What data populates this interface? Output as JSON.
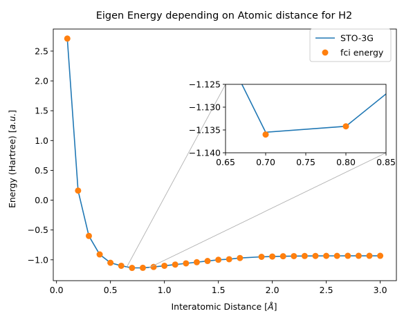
{
  "chart_data": {
    "type": "line",
    "title": "Eigen Energy depending on Atomic distance for H2",
    "xlabel_parts": [
      "Interatomic Distance [",
      "Å",
      "]"
    ],
    "ylabel_parts": [
      "Energy (Hartree) [",
      "a.u.",
      "]"
    ],
    "xlim": [
      -0.03,
      3.15
    ],
    "ylim": [
      -1.35,
      2.87
    ],
    "x_ticks": [
      0.0,
      0.5,
      1.0,
      1.5,
      2.0,
      2.5,
      3.0
    ],
    "x_tick_labels": [
      "0.0",
      "0.5",
      "1.0",
      "1.5",
      "2.0",
      "2.5",
      "3.0"
    ],
    "y_ticks": [
      -1.0,
      -0.5,
      0.0,
      0.5,
      1.0,
      1.5,
      2.0,
      2.5
    ],
    "y_tick_labels": [
      "−1.0",
      "−0.5",
      "0.0",
      "0.5",
      "1.0",
      "1.5",
      "2.0",
      "2.5"
    ],
    "legend_position": "top-right",
    "series": [
      {
        "name": "STO-3G",
        "kind": "line",
        "color": "#1f77b4",
        "x": [
          0.1,
          0.2,
          0.3,
          0.4,
          0.5,
          0.6,
          0.7,
          0.8,
          0.9,
          1.0,
          1.1,
          1.2,
          1.3,
          1.4,
          1.5,
          1.6,
          1.7,
          1.9,
          2.0,
          2.1,
          2.2,
          2.3,
          2.4,
          2.5,
          2.6,
          2.7,
          2.8,
          2.9,
          3.0
        ],
        "y": [
          2.71,
          0.16,
          -0.6,
          -0.91,
          -1.05,
          -1.1,
          -1.1355,
          -1.1342,
          -1.12,
          -1.1,
          -1.08,
          -1.06,
          -1.04,
          -1.02,
          -1.0,
          -0.99,
          -0.97,
          -0.95,
          -0.945,
          -0.94,
          -0.938,
          -0.936,
          -0.935,
          -0.934,
          -0.934,
          -0.933,
          -0.933,
          -0.933,
          -0.933
        ]
      },
      {
        "name": "fci energy",
        "kind": "scatter",
        "color": "#ff7f0e",
        "x": [
          0.1,
          0.2,
          0.3,
          0.4,
          0.5,
          0.6,
          0.7,
          0.8,
          0.9,
          1.0,
          1.1,
          1.2,
          1.3,
          1.4,
          1.5,
          1.6,
          1.7,
          1.9,
          2.0,
          2.1,
          2.2,
          2.3,
          2.4,
          2.5,
          2.6,
          2.7,
          2.8,
          2.9,
          3.0
        ],
        "y": [
          2.71,
          0.16,
          -0.6,
          -0.91,
          -1.05,
          -1.1,
          -1.136,
          -1.1342,
          -1.12,
          -1.1,
          -1.08,
          -1.06,
          -1.04,
          -1.02,
          -1.0,
          -0.99,
          -0.97,
          -0.95,
          -0.945,
          -0.94,
          -0.938,
          -0.936,
          -0.935,
          -0.934,
          -0.934,
          -0.933,
          -0.933,
          -0.933,
          -0.933
        ]
      }
    ],
    "inset": {
      "xlim": [
        0.65,
        0.85
      ],
      "ylim": [
        -1.14,
        -1.125
      ],
      "x_ticks": [
        0.65,
        0.7,
        0.75,
        0.8,
        0.85
      ],
      "x_tick_labels": [
        "0.65",
        "0.70",
        "0.75",
        "0.80",
        "0.85"
      ],
      "y_ticks": [
        -1.14,
        -1.135,
        -1.13,
        -1.125
      ],
      "y_tick_labels": [
        "−1.140",
        "−1.135",
        "−1.130",
        "−1.125"
      ],
      "line_x": [
        0.6,
        0.7,
        0.8,
        0.9
      ],
      "line_y": [
        -1.1,
        -1.1355,
        -1.1342,
        -1.12
      ],
      "points_x": [
        0.7,
        0.8
      ],
      "points_y": [
        -1.136,
        -1.1342
      ]
    }
  }
}
